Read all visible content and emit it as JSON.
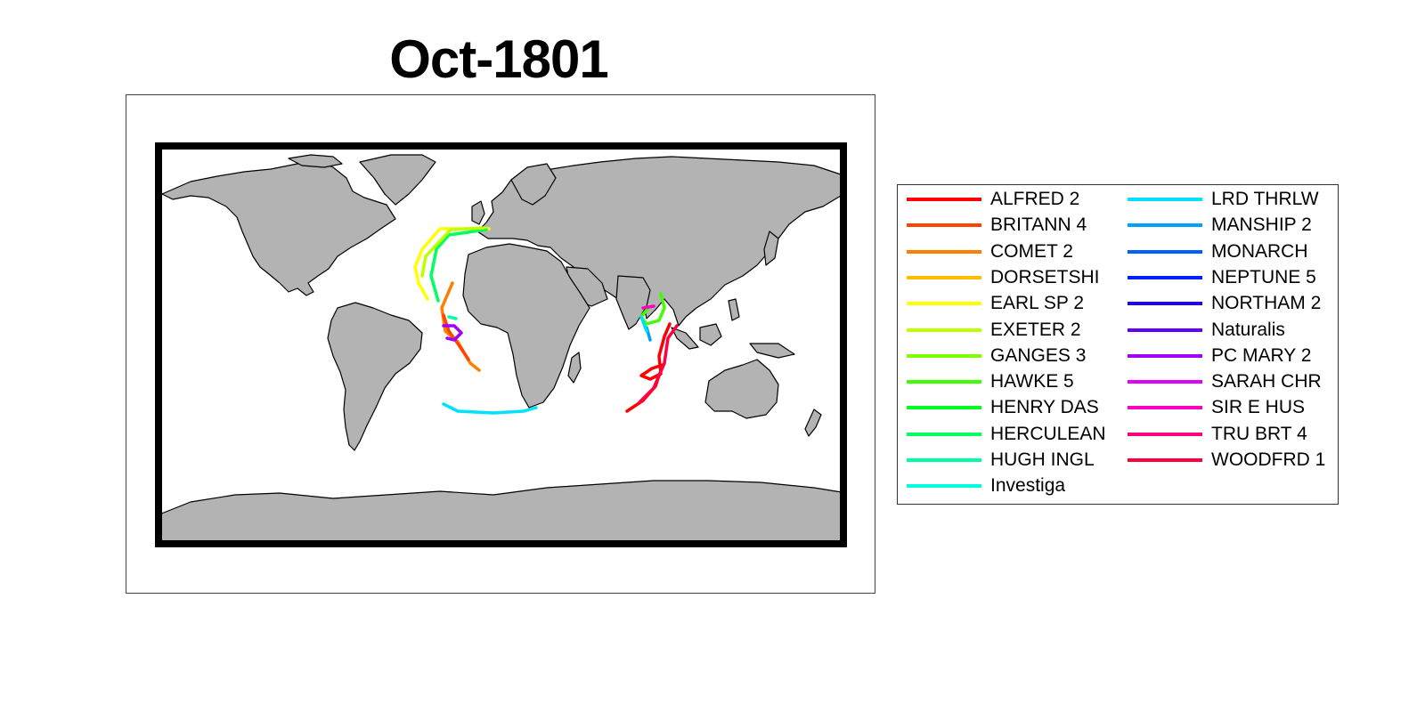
{
  "title": "Oct-1801",
  "map": {
    "land_color": "#b3b3b3",
    "coast_color": "#000000",
    "frame_color": "#000000",
    "ocean_color": "#ffffff"
  },
  "legend": {
    "items": [
      {
        "label": "ALFRED 2",
        "color": "#ff0000"
      },
      {
        "label": "BRITANN 4",
        "color": "#ff4500"
      },
      {
        "label": "COMET 2",
        "color": "#ff8000"
      },
      {
        "label": "DORSETSHI",
        "color": "#ffbf00"
      },
      {
        "label": "EARL SP 2",
        "color": "#ffff00"
      },
      {
        "label": "EXETER 2",
        "color": "#bfff00"
      },
      {
        "label": "GANGES 3",
        "color": "#80ff00"
      },
      {
        "label": "HAWKE 5",
        "color": "#40ff00"
      },
      {
        "label": "HENRY DAS",
        "color": "#00ff20"
      },
      {
        "label": "HERCULEAN",
        "color": "#00ff60"
      },
      {
        "label": "HUGH INGL",
        "color": "#00ffa0"
      },
      {
        "label": "Investiga",
        "color": "#00ffe0"
      },
      {
        "label": "LRD THRLW",
        "color": "#00e0ff"
      },
      {
        "label": "MANSHIP 2",
        "color": "#00a0ff"
      },
      {
        "label": "MONARCH",
        "color": "#0060ff"
      },
      {
        "label": "NEPTUNE 5",
        "color": "#0020ff"
      },
      {
        "label": "NORTHAM 2",
        "color": "#2000ff"
      },
      {
        "label": "Naturalis",
        "color": "#6000ff"
      },
      {
        "label": "PC MARY 2",
        "color": "#a000ff"
      },
      {
        "label": "SARAH CHR",
        "color": "#e000ff"
      },
      {
        "label": "SIR E HUS",
        "color": "#ff00c0"
      },
      {
        "label": "TRU BRT 4",
        "color": "#ff0080"
      },
      {
        "label": "WOODFRD 1",
        "color": "#ff0040"
      }
    ]
  }
}
